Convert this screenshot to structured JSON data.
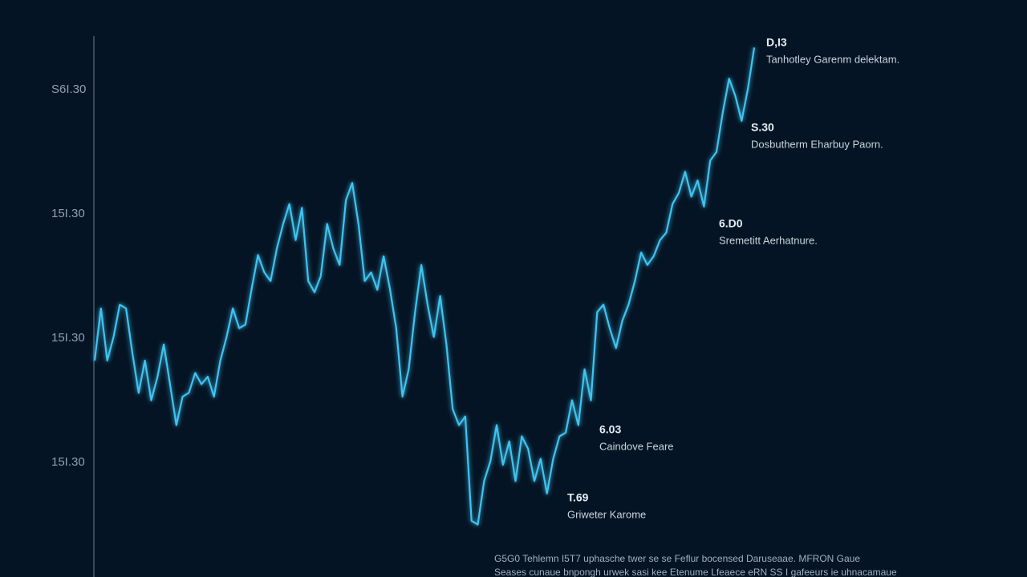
{
  "chart_data": {
    "type": "line",
    "ylim": [
      0.1,
      4.5
    ],
    "yticks": [
      {
        "value": 1,
        "label": "15I.30"
      },
      {
        "value": 2,
        "label": "15I.30"
      },
      {
        "value": 3,
        "label": "15I.30"
      },
      {
        "value": 4,
        "label": "S6I.30"
      }
    ],
    "series": [
      {
        "color": "#3fc3f0",
        "values": [
          1.82,
          2.24,
          1.82,
          2.01,
          2.27,
          2.24,
          1.88,
          1.56,
          1.82,
          1.5,
          1.69,
          1.95,
          1.63,
          1.3,
          1.53,
          1.56,
          1.72,
          1.63,
          1.69,
          1.53,
          1.82,
          2.01,
          2.24,
          2.08,
          2.11,
          2.4,
          2.67,
          2.53,
          2.46,
          2.72,
          2.92,
          3.08,
          2.79,
          3.05,
          2.46,
          2.37,
          2.5,
          2.92,
          2.72,
          2.59,
          3.11,
          3.25,
          2.92,
          2.46,
          2.53,
          2.39,
          2.66,
          2.4,
          2.08,
          1.53,
          1.75,
          2.21,
          2.59,
          2.27,
          2.01,
          2.34,
          1.95,
          1.43,
          1.3,
          1.37,
          0.53,
          0.5,
          0.85,
          1.01,
          1.3,
          0.98,
          1.17,
          0.85,
          1.21,
          1.11,
          0.85,
          1.03,
          0.75,
          1.03,
          1.21,
          1.24,
          1.5,
          1.3,
          1.75,
          1.5,
          2.21,
          2.27,
          2.08,
          1.92,
          2.14,
          2.27,
          2.46,
          2.69,
          2.59,
          2.66,
          2.79,
          2.85,
          3.08,
          3.17,
          3.34,
          3.14,
          3.27,
          3.06,
          3.43,
          3.5,
          3.82,
          4.09,
          3.95,
          3.75,
          4.01,
          4.34
        ]
      }
    ],
    "annotations": [
      {
        "value": "D,I3",
        "text": "Tanhotley Garenm delektam."
      },
      {
        "value": "S.30",
        "text": "Dosbutherm Eharbuy Paorn."
      },
      {
        "value": "6.D0",
        "text": "Sremetitt Aerhatnure."
      },
      {
        "value": "6.03",
        "text": "Caindove Feare"
      },
      {
        "value": "T.69",
        "text": "Griweter Karome"
      }
    ],
    "footnote": [
      "G5G0 Tehlemn I5T7 uphasche twer se se Feflur bocensed Daruseaae. MFRON Gaue",
      "Seases cunaue bnpongh urwek sasi kee Etenume Lfeaece eRN SS I gafeeurs ie uhnacamaue"
    ]
  }
}
